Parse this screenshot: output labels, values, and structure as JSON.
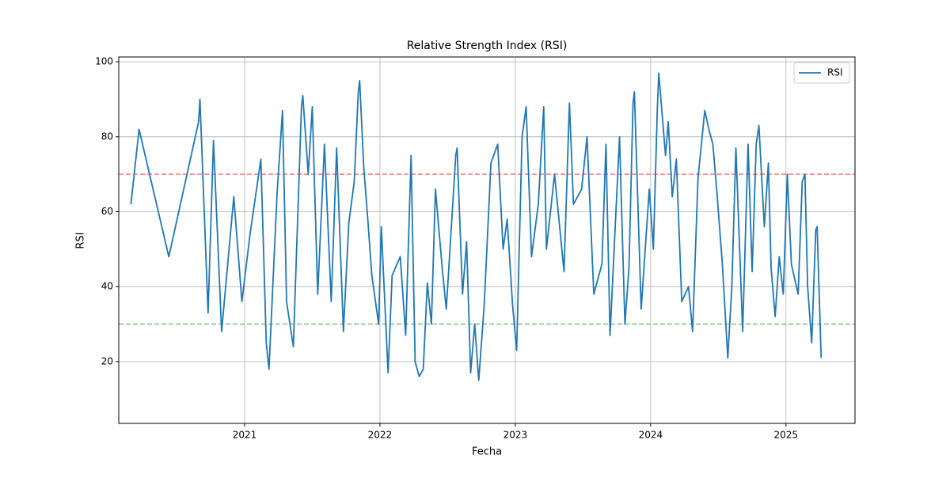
{
  "chart_data": {
    "type": "line",
    "title": "Relative Strength Index (RSI)",
    "xlabel": "Fecha",
    "ylabel": "RSI",
    "xlim": [
      2020.07,
      2025.51
    ],
    "xticks": [
      2021,
      2022,
      2023,
      2024,
      2025
    ],
    "ylim": [
      3.5,
      101.3
    ],
    "yticks": [
      20,
      40,
      60,
      80,
      100
    ],
    "grid": true,
    "legend": "upper right",
    "hlines": [
      {
        "value": 70,
        "color": "#ff0000"
      },
      {
        "value": 30,
        "color": "#008000"
      }
    ],
    "series": [
      {
        "name": "RSI",
        "color": "#1f77b4",
        "x": [
          2020.16,
          2020.22,
          2020.44,
          2020.66,
          2020.67,
          2020.73,
          2020.77,
          2020.83,
          2020.92,
          2020.98,
          2021.04,
          2021.12,
          2021.16,
          2021.18,
          2021.24,
          2021.28,
          2021.31,
          2021.36,
          2021.42,
          2021.43,
          2021.47,
          2021.5,
          2021.54,
          2021.59,
          2021.64,
          2021.68,
          2021.73,
          2021.77,
          2021.81,
          2021.84,
          2021.85,
          2021.88,
          2021.91,
          2021.94,
          2021.99,
          2022.01,
          2022.06,
          2022.09,
          2022.15,
          2022.19,
          2022.23,
          2022.26,
          2022.29,
          2022.32,
          2022.35,
          2022.38,
          2022.41,
          2022.46,
          2022.49,
          2022.56,
          2022.57,
          2022.61,
          2022.64,
          2022.67,
          2022.7,
          2022.73,
          2022.77,
          2022.79,
          2022.82,
          2022.87,
          2022.91,
          2022.94,
          2022.98,
          2023.01,
          2023.05,
          2023.08,
          2023.12,
          2023.17,
          2023.21,
          2023.23,
          2023.29,
          2023.36,
          2023.4,
          2023.43,
          2023.49,
          2023.53,
          2023.58,
          2023.64,
          2023.67,
          2023.7,
          2023.77,
          2023.81,
          2023.84,
          2023.87,
          2023.88,
          2023.93,
          2023.99,
          2024.02,
          2024.05,
          2024.06,
          2024.11,
          2024.13,
          2024.16,
          2024.19,
          2024.23,
          2024.28,
          2024.31,
          2024.35,
          2024.4,
          2024.43,
          2024.46,
          2024.49,
          2024.53,
          2024.57,
          2024.6,
          2024.63,
          2024.68,
          2024.72,
          2024.75,
          2024.78,
          2024.8,
          2024.84,
          2024.87,
          2024.89,
          2024.92,
          2024.95,
          2024.98,
          2025.01,
          2025.04,
          2025.09,
          2025.12,
          2025.14,
          2025.16,
          2025.19,
          2025.22,
          2025.23,
          2025.26
        ],
        "values": [
          62,
          82,
          48,
          84,
          90,
          33,
          79,
          28,
          64,
          36,
          54,
          74,
          25,
          18,
          65,
          87,
          36,
          24,
          88,
          91,
          70,
          88,
          38,
          78,
          36,
          77,
          28,
          57,
          68,
          92,
          95,
          72,
          58,
          43,
          30,
          56,
          17,
          43,
          48,
          27,
          75,
          20,
          16,
          18,
          41,
          30,
          66,
          45,
          34,
          75,
          77,
          38,
          52,
          17,
          30,
          15,
          35,
          50,
          73,
          78,
          50,
          58,
          35,
          23,
          80,
          88,
          48,
          62,
          88,
          50,
          70,
          44,
          89,
          62,
          66,
          80,
          38,
          46,
          78,
          27,
          80,
          30,
          45,
          89,
          92,
          34,
          66,
          50,
          88,
          97,
          75,
          84,
          64,
          74,
          36,
          40,
          28,
          69,
          87,
          82,
          78,
          65,
          46,
          21,
          40,
          77,
          28,
          78,
          44,
          78,
          83,
          56,
          73,
          45,
          32,
          48,
          38,
          70,
          46,
          38,
          68,
          70,
          40,
          25,
          55,
          56,
          21
        ]
      }
    ]
  }
}
